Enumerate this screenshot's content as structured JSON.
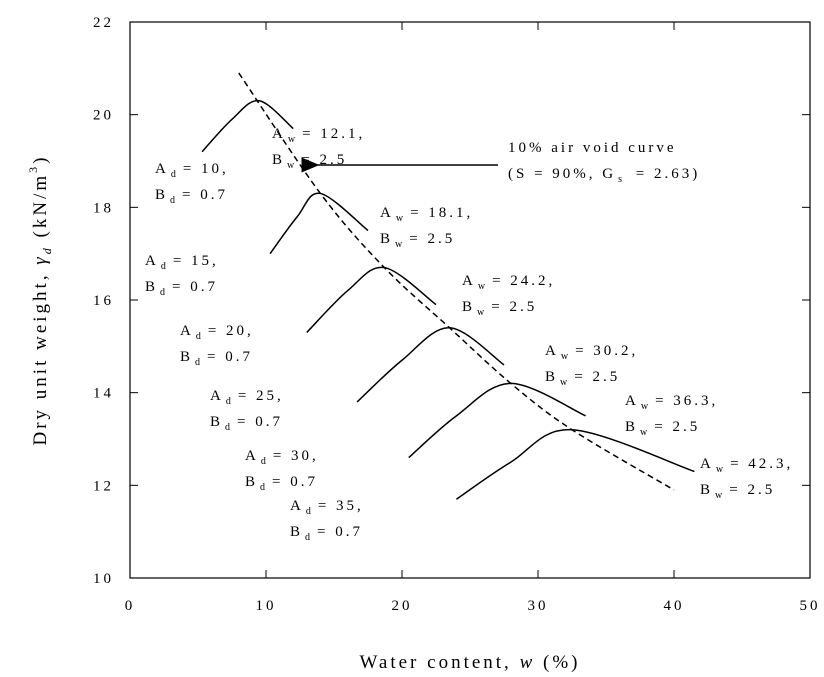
{
  "chart_data": {
    "type": "line",
    "x_label": {
      "main": "Water content, ",
      "italic": "w",
      "rest": " (%)"
    },
    "y_label": {
      "main": "Dry unit weight, ",
      "italic": "γ",
      "sub": "d",
      "rest": " (kN/m",
      "sup": "3",
      "close": ")"
    },
    "xlim": [
      0,
      50
    ],
    "xticks": [
      0,
      10,
      20,
      30,
      40,
      50
    ],
    "ylim": [
      10,
      22
    ],
    "yticks": [
      10,
      12,
      14,
      16,
      18,
      20,
      22
    ],
    "color": "#000000",
    "series": [
      {
        "x": [
          5.3,
          7.5,
          9.5,
          12
        ],
        "values": [
          19.2,
          19.9,
          20.3,
          19.7
        ]
      },
      {
        "x": [
          10.3,
          12.3,
          14,
          17.5
        ],
        "values": [
          17.0,
          17.8,
          18.3,
          17.5
        ]
      },
      {
        "x": [
          13,
          16,
          18.7,
          22.5
        ],
        "values": [
          15.3,
          16.2,
          16.7,
          15.9
        ]
      },
      {
        "x": [
          16.7,
          20,
          23.5,
          27.5
        ],
        "values": [
          13.8,
          14.7,
          15.4,
          14.6
        ]
      },
      {
        "x": [
          20.5,
          24,
          28,
          33.5
        ],
        "values": [
          12.6,
          13.5,
          14.2,
          13.5
        ]
      },
      {
        "x": [
          24,
          28,
          32.5,
          41.5
        ],
        "values": [
          11.7,
          12.5,
          13.2,
          12.3
        ]
      },
      {
        "x": [
          8,
          14,
          18.7,
          23.5,
          28,
          32.5,
          40
        ],
        "values": [
          20.9,
          18.3,
          16.7,
          15.4,
          14.2,
          13.2,
          11.9
        ],
        "dash": true
      }
    ],
    "annotations": [
      {
        "lines": [
          {
            "main": "A",
            "sub": "d",
            "rest": "= 10,"
          },
          {
            "main": "B",
            "sub": "d",
            "rest": "= 0.7"
          }
        ]
      },
      {
        "lines": [
          {
            "main": "A",
            "sub": "w",
            "rest": "= 12.1,"
          },
          {
            "main": "B",
            "sub": "w",
            "rest": "= 2.5"
          }
        ]
      },
      {
        "lines": [
          {
            "main": "A",
            "sub": "d",
            "rest": "= 15,"
          },
          {
            "main": "B",
            "sub": "d",
            "rest": "= 0.7"
          }
        ]
      },
      {
        "lines": [
          {
            "main": "A",
            "sub": "w",
            "rest": "= 18.1,"
          },
          {
            "main": "B",
            "sub": "w",
            "rest": "= 2.5"
          }
        ]
      },
      {
        "lines": [
          {
            "main": "A",
            "sub": "d",
            "rest": "= 20,"
          },
          {
            "main": "B",
            "sub": "d",
            "rest": "= 0.7"
          }
        ]
      },
      {
        "lines": [
          {
            "main": "A",
            "sub": "w",
            "rest": "= 24.2,"
          },
          {
            "main": "B",
            "sub": "w",
            "rest": "= 2.5"
          }
        ]
      },
      {
        "lines": [
          {
            "main": "A",
            "sub": "d",
            "rest": "= 25,"
          },
          {
            "main": "B",
            "sub": "d",
            "rest": "= 0.7"
          }
        ]
      },
      {
        "lines": [
          {
            "main": "A",
            "sub": "w",
            "rest": "= 30.2,"
          },
          {
            "main": "B",
            "sub": "w",
            "rest": "= 2.5"
          }
        ]
      },
      {
        "lines": [
          {
            "main": "A",
            "sub": "d",
            "rest": "= 30,"
          },
          {
            "main": "B",
            "sub": "d",
            "rest": "= 0.7"
          }
        ]
      },
      {
        "lines": [
          {
            "main": "A",
            "sub": "w",
            "rest": "= 36.3,"
          },
          {
            "main": "B",
            "sub": "w",
            "rest": "= 2.5"
          }
        ]
      },
      {
        "lines": [
          {
            "main": "A",
            "sub": "d",
            "rest": "= 35,"
          },
          {
            "main": "B",
            "sub": "d",
            "rest": "= 0.7"
          }
        ]
      },
      {
        "lines": [
          {
            "main": "A",
            "sub": "w",
            "rest": "= 42.3,"
          },
          {
            "main": "B",
            "sub": "w",
            "rest": "= 2.5"
          }
        ]
      },
      {
        "lines": [
          {
            "main": "10% air void curve"
          },
          {
            "main": "(S = 90%, G",
            "sub": "s",
            "rest": " = 2.63)"
          }
        ]
      }
    ]
  }
}
